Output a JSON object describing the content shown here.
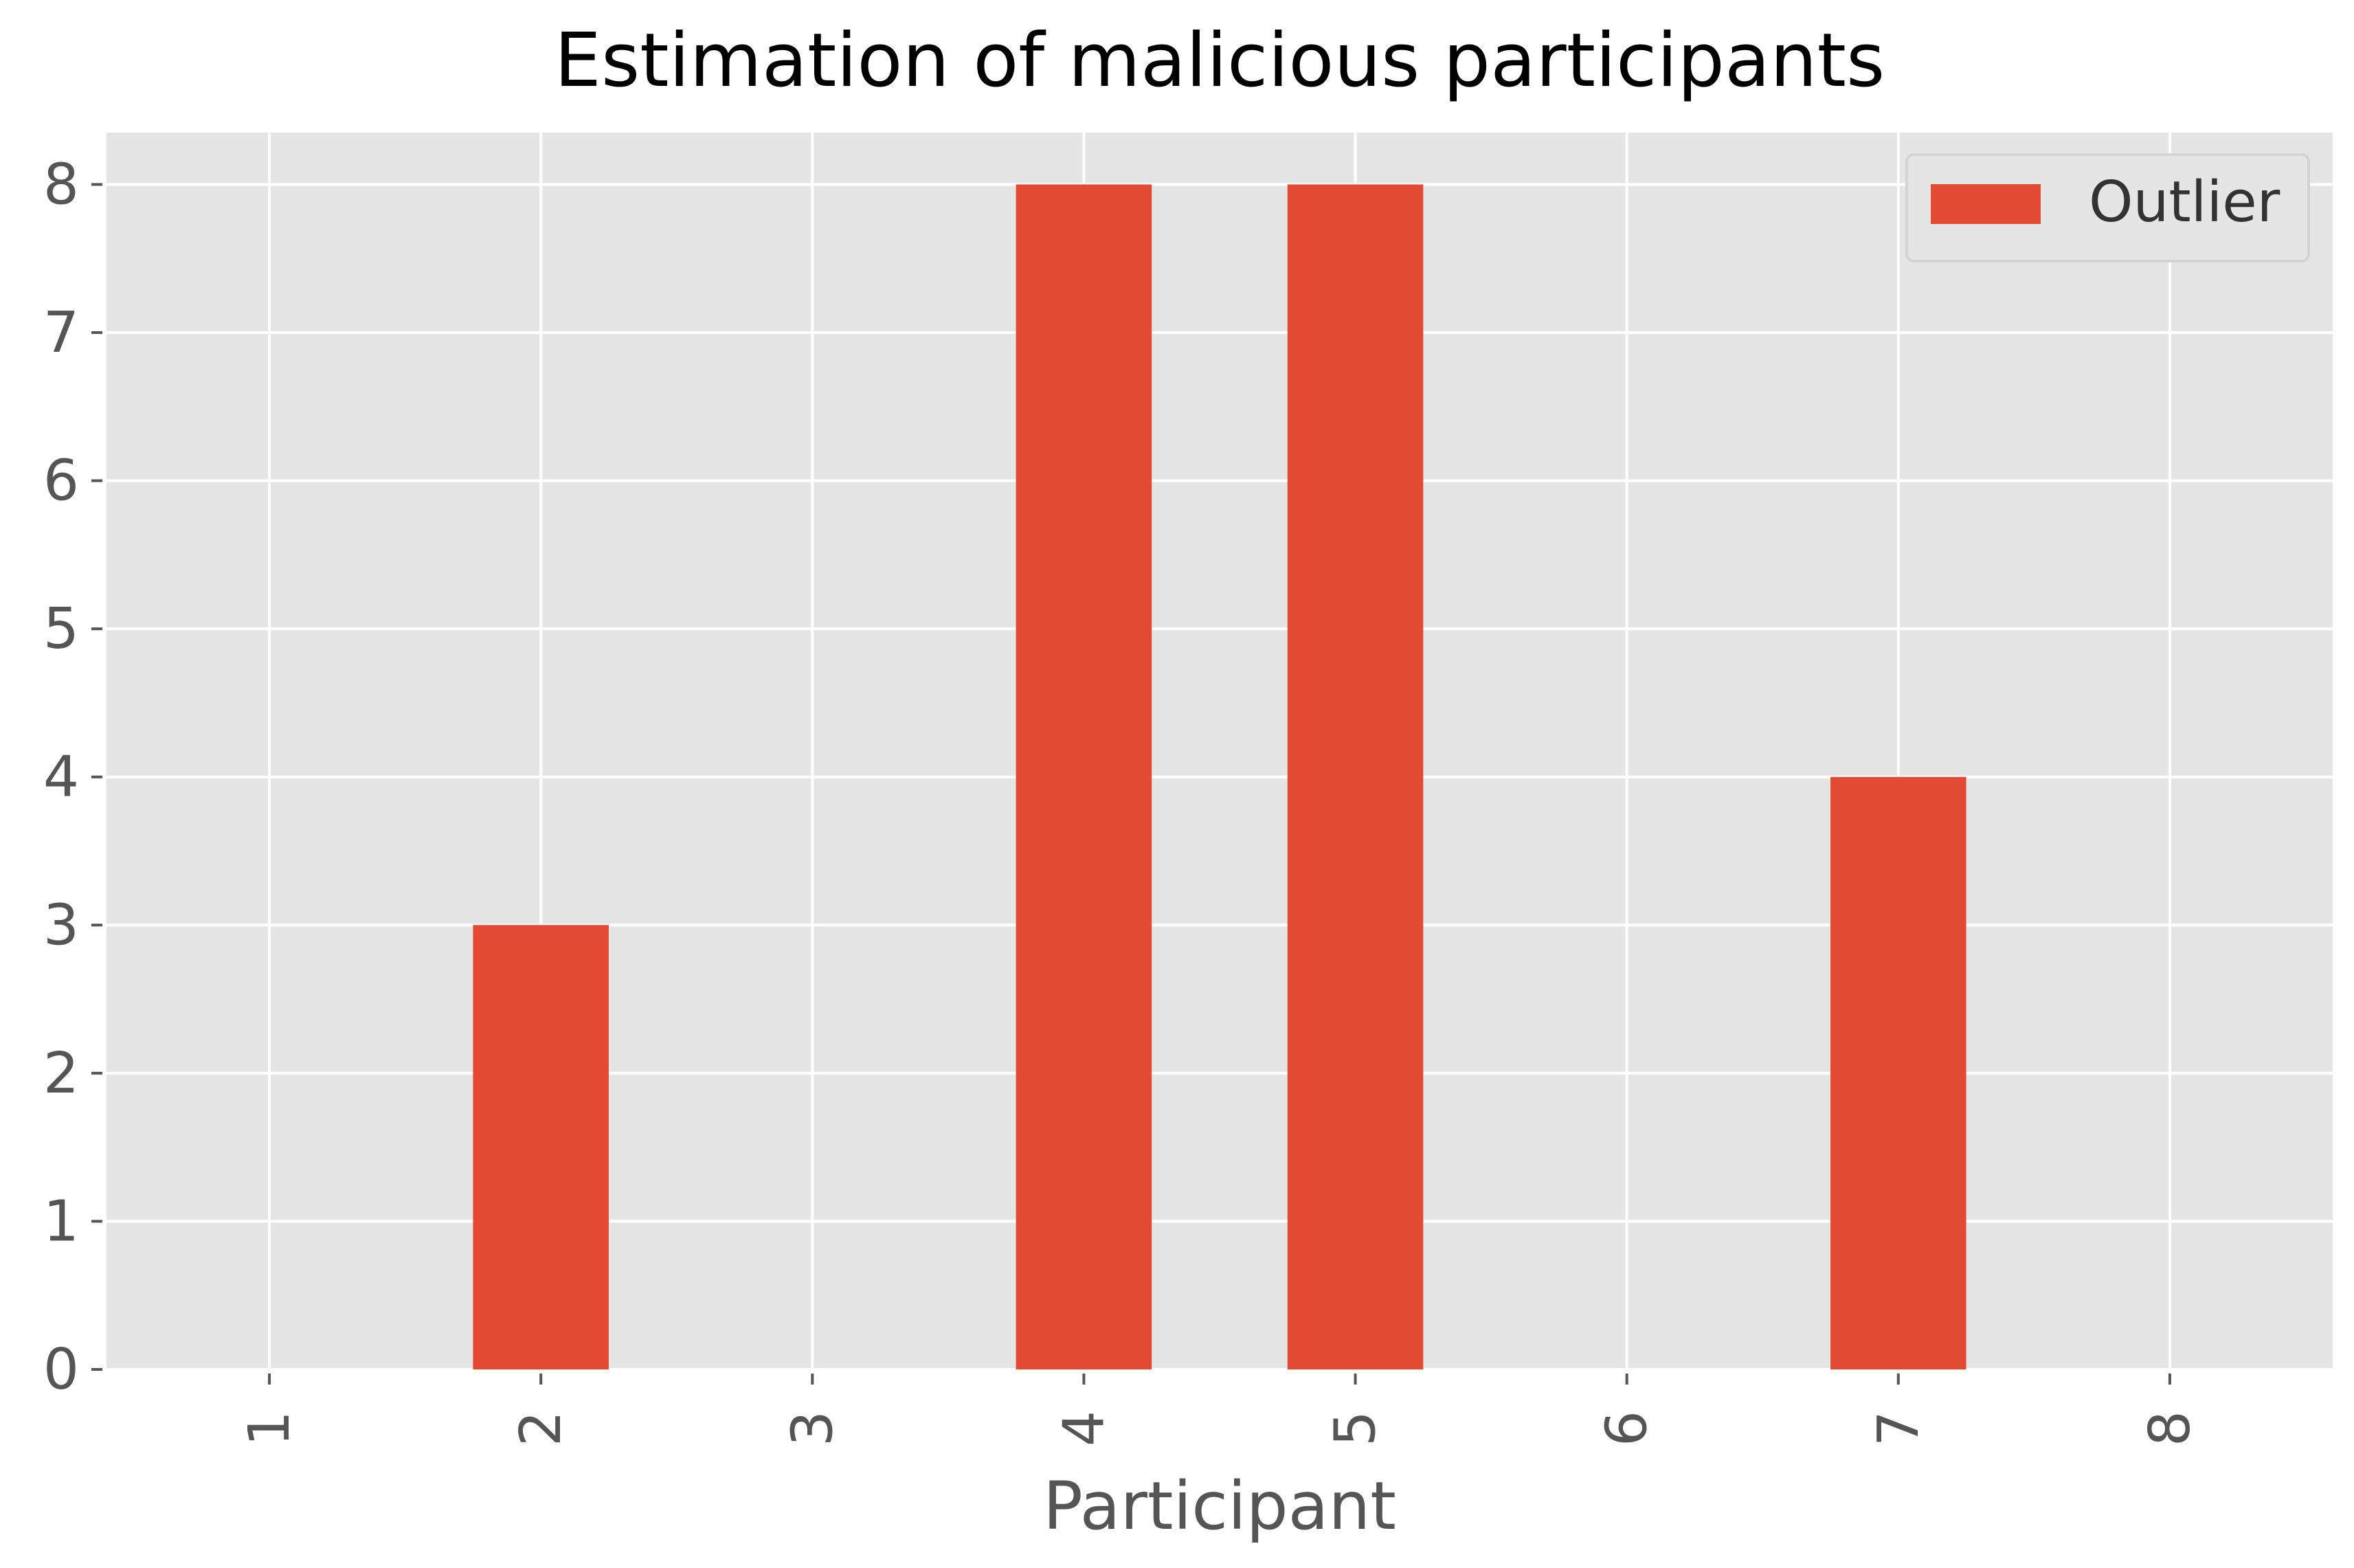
{
  "chart_data": {
    "type": "bar",
    "title": "Estimation of malicious participants",
    "xlabel": "Participant",
    "ylabel": "",
    "categories": [
      "1",
      "2",
      "3",
      "4",
      "5",
      "6",
      "7",
      "8"
    ],
    "series": [
      {
        "name": "Outlier",
        "values": [
          0,
          3,
          0,
          8,
          8,
          0,
          4,
          0
        ]
      }
    ],
    "yticks": [
      "0",
      "1",
      "2",
      "3",
      "4",
      "5",
      "6",
      "7",
      "8"
    ],
    "ylim": [
      0,
      8.35
    ],
    "grid": true,
    "legend_position": "top-right",
    "colors": {
      "bar": "#E24A33",
      "plot_background": "#E5E5E5",
      "grid": "#FFFFFF",
      "text": "#555555",
      "title": "#000000"
    }
  }
}
